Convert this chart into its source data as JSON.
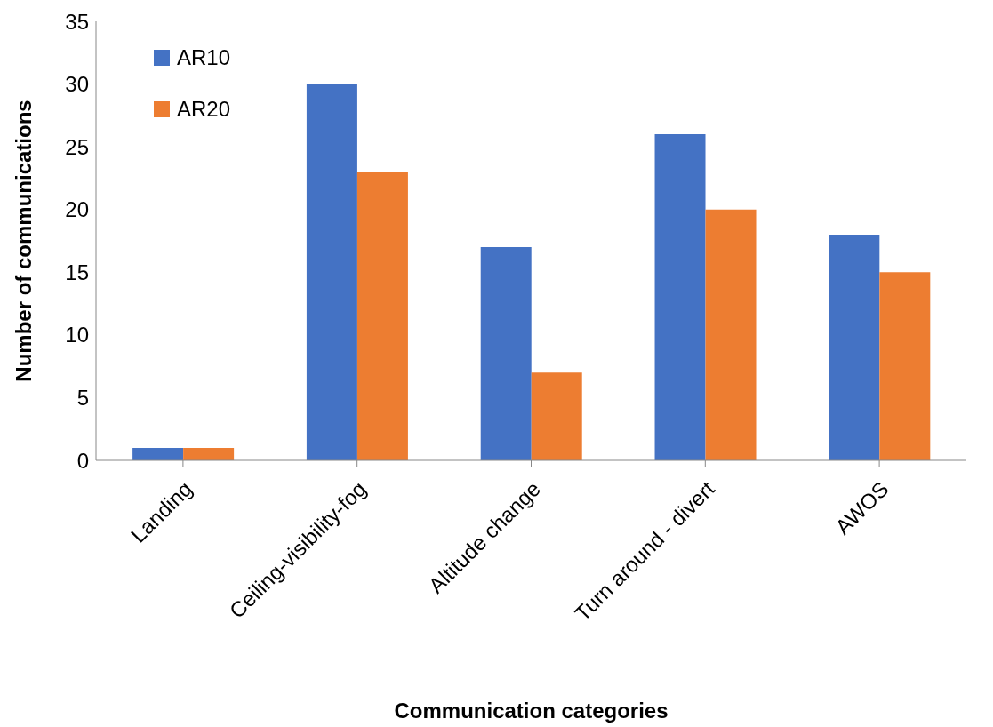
{
  "chart_data": {
    "type": "bar",
    "xlabel": "Communication categories",
    "ylabel": "Number of communications",
    "categories": [
      "Landing",
      "Ceiling-visibility-fog",
      "Altitude change",
      "Turn around - divert",
      "AWOS"
    ],
    "series": [
      {
        "name": "AR10",
        "color": "#4472c4",
        "values": [
          1,
          30,
          17,
          26,
          18
        ]
      },
      {
        "name": "AR20",
        "color": "#ed7d31",
        "values": [
          1,
          23,
          7,
          20,
          15
        ]
      }
    ],
    "ylim": [
      0,
      35
    ],
    "yticks": [
      0,
      5,
      10,
      15,
      20,
      25,
      30,
      35
    ],
    "grid": false,
    "legend": "top left"
  }
}
